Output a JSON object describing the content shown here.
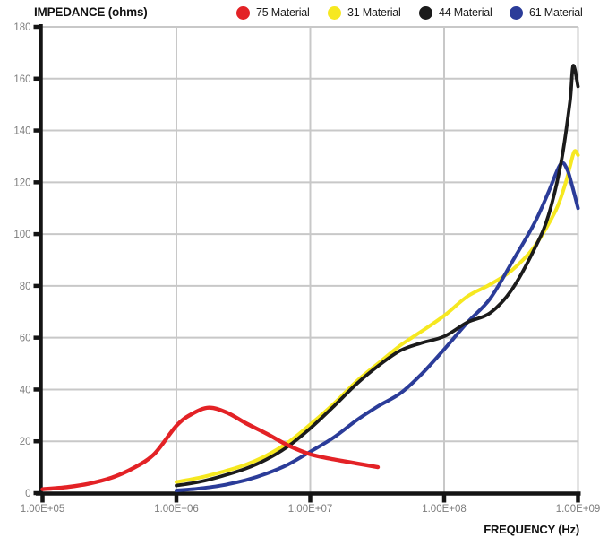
{
  "chart_data": {
    "type": "line",
    "title": "",
    "xlabel": "FREQUENCY (Hz)",
    "ylabel": "IMPEDANCE (ohms)",
    "x_scale": "log",
    "xlim": [
      100000.0,
      1000000000.0
    ],
    "ylim": [
      0,
      180
    ],
    "grid": true,
    "legend_position": "top",
    "xticks": [
      100000.0,
      1000000.0,
      10000000.0,
      100000000.0,
      1000000000.0
    ],
    "xtick_labels": [
      "1.00E+05",
      "1.00E+06",
      "1.00E+07",
      "1.00E+08",
      "1.00E+09"
    ],
    "yticks": [
      0,
      20,
      40,
      60,
      80,
      100,
      120,
      140,
      160,
      180
    ],
    "colors": {
      "grid": "#c8c8c8",
      "axis": "#141414",
      "tick_text": "#7d7d7d",
      "background": "#ffffff"
    },
    "series": [
      {
        "name": "75 Material",
        "color": "#e32226",
        "points": [
          [
            100000.0,
            1.5
          ],
          [
            150000.0,
            2.3
          ],
          [
            220000.0,
            3.6
          ],
          [
            330000.0,
            6.0
          ],
          [
            470000.0,
            9.5
          ],
          [
            680000.0,
            15.0
          ],
          [
            1000000.0,
            26.0
          ],
          [
            1300000.0,
            30.5
          ],
          [
            1750000.0,
            33.0
          ],
          [
            2400000.0,
            31.0
          ],
          [
            3300000.0,
            27.0
          ],
          [
            4700000.0,
            23.0
          ],
          [
            6800000.0,
            18.5
          ],
          [
            10000000.0,
            15.0
          ],
          [
            15000000.0,
            13.0
          ],
          [
            22000000.0,
            11.5
          ],
          [
            32000000.0,
            10.0
          ]
        ]
      },
      {
        "name": "31 Material",
        "color": "#f6e820",
        "points": [
          [
            1000000.0,
            4.3
          ],
          [
            1500000.0,
            6.0
          ],
          [
            2200000.0,
            8.2
          ],
          [
            3300000.0,
            11.0
          ],
          [
            4700000.0,
            14.5
          ],
          [
            6800000.0,
            19.5
          ],
          [
            10000000.0,
            26.5
          ],
          [
            15000000.0,
            34.5
          ],
          [
            22000000.0,
            43.0
          ],
          [
            32000000.0,
            50.0
          ],
          [
            47000000.0,
            57.0
          ],
          [
            68000000.0,
            62.5
          ],
          [
            100000000.0,
            68.5
          ],
          [
            150000000.0,
            76.0
          ],
          [
            220000000.0,
            80.5
          ],
          [
            320000000.0,
            86.0
          ],
          [
            470000000.0,
            95.0
          ],
          [
            680000000.0,
            109.0
          ],
          [
            800000000.0,
            119.0
          ],
          [
            870000000.0,
            126.0
          ],
          [
            940000000.0,
            132.0
          ],
          [
            1000000000.0,
            130.5
          ]
        ]
      },
      {
        "name": "44 Material",
        "color": "#1b1b1b",
        "points": [
          [
            1000000.0,
            2.9
          ],
          [
            1500000.0,
            4.4
          ],
          [
            2200000.0,
            6.6
          ],
          [
            3300000.0,
            9.5
          ],
          [
            4700000.0,
            13.0
          ],
          [
            6800000.0,
            18.0
          ],
          [
            10000000.0,
            25.0
          ],
          [
            15000000.0,
            33.5
          ],
          [
            22000000.0,
            42.0
          ],
          [
            32000000.0,
            49.0
          ],
          [
            47000000.0,
            55.0
          ],
          [
            68000000.0,
            58.0
          ],
          [
            100000000.0,
            60.5
          ],
          [
            150000000.0,
            66.0
          ],
          [
            220000000.0,
            69.5
          ],
          [
            320000000.0,
            78.5
          ],
          [
            470000000.0,
            94.0
          ],
          [
            600000000.0,
            107.0
          ],
          [
            750000000.0,
            128.0
          ],
          [
            870000000.0,
            151.0
          ],
          [
            920000000.0,
            165.0
          ],
          [
            1000000000.0,
            157.0
          ]
        ]
      },
      {
        "name": "61 Material",
        "color": "#2b3c99",
        "points": [
          [
            1000000.0,
            1.0
          ],
          [
            1500000.0,
            1.8
          ],
          [
            2200000.0,
            3.0
          ],
          [
            3300000.0,
            5.0
          ],
          [
            4700000.0,
            7.5
          ],
          [
            6800000.0,
            11.0
          ],
          [
            10000000.0,
            16.0
          ],
          [
            15000000.0,
            21.5
          ],
          [
            22000000.0,
            28.0
          ],
          [
            32000000.0,
            33.5
          ],
          [
            47000000.0,
            38.5
          ],
          [
            68000000.0,
            46.0
          ],
          [
            100000000.0,
            55.5
          ],
          [
            150000000.0,
            66.0
          ],
          [
            220000000.0,
            75.0
          ],
          [
            320000000.0,
            89.0
          ],
          [
            470000000.0,
            104.0
          ],
          [
            600000000.0,
            116.0
          ],
          [
            740000000.0,
            127.0
          ],
          [
            830000000.0,
            125.0
          ],
          [
            900000000.0,
            119.0
          ],
          [
            1000000000.0,
            110.0
          ]
        ]
      }
    ]
  }
}
